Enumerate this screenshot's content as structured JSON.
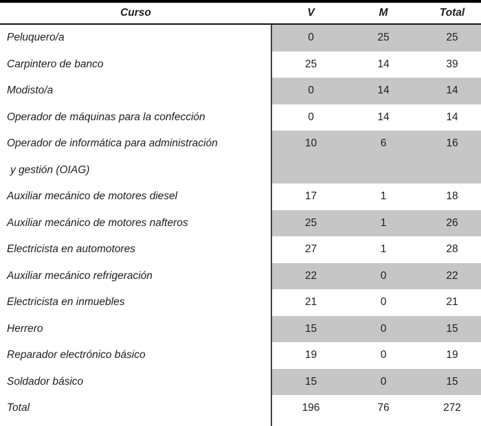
{
  "table": {
    "columns": [
      "Curso",
      "V",
      "M",
      "Total"
    ],
    "rows": [
      {
        "curso": "Peluquero/a",
        "v": "0",
        "m": "25",
        "total": "25",
        "shaded": true
      },
      {
        "curso": "Carpintero de banco",
        "v": "25",
        "m": "14",
        "total": "39",
        "shaded": false
      },
      {
        "curso": "Modisto/a",
        "v": "0",
        "m": "14",
        "total": "14",
        "shaded": true
      },
      {
        "curso": "Operador de máquinas para la confección",
        "v": "0",
        "m": "14",
        "total": "14",
        "shaded": false
      },
      {
        "curso_line1": "Operador de informática para administración",
        "curso_line2": "y gestión (OIAG)",
        "v": "10",
        "m": "6",
        "total": "16",
        "shaded": true
      },
      {
        "curso": "Auxiliar mecánico de motores diesel",
        "v": "17",
        "m": "1",
        "total": "18",
        "shaded": false
      },
      {
        "curso": "Auxiliar mecánico de motores nafteros",
        "v": "25",
        "m": "1",
        "total": "26",
        "shaded": true
      },
      {
        "curso": "Electricista en automotores",
        "v": "27",
        "m": "1",
        "total": "28",
        "shaded": false
      },
      {
        "curso": "Auxiliar mecánico refrigeración",
        "v": "22",
        "m": "0",
        "total": "22",
        "shaded": true
      },
      {
        "curso": "Electricista en inmuebles",
        "v": "21",
        "m": "0",
        "total": "21",
        "shaded": false
      },
      {
        "curso": "Herrero",
        "v": "15",
        "m": "0",
        "total": "15",
        "shaded": true
      },
      {
        "curso": "Reparador electrónico básico",
        "v": "19",
        "m": "0",
        "total": "19",
        "shaded": false
      },
      {
        "curso": "Soldador básico",
        "v": "15",
        "m": "0",
        "total": "15",
        "shaded": true
      },
      {
        "curso": "Total",
        "v": "196",
        "m": "76",
        "total": "272",
        "shaded": false
      }
    ],
    "colors": {
      "shaded_row": "#c6c6c6",
      "top_border": "#000000",
      "divider": "#3d3d3d",
      "text": "#1d1d1d"
    }
  },
  "chart_data": {
    "type": "table",
    "title": "",
    "columns": [
      "Curso",
      "V",
      "M",
      "Total"
    ],
    "categories": [
      "Peluquero/a",
      "Carpintero de banco",
      "Modisto/a",
      "Operador de máquinas para la confección",
      "Operador de informática para administración y gestión (OIAG)",
      "Auxiliar mecánico de motores diesel",
      "Auxiliar mecánico de motores nafteros",
      "Electricista en automotores",
      "Auxiliar mecánico refrigeración",
      "Electricista en inmuebles",
      "Herrero",
      "Reparador electrónico básico",
      "Soldador básico"
    ],
    "series": [
      {
        "name": "V",
        "values": [
          0,
          25,
          0,
          0,
          10,
          17,
          25,
          27,
          22,
          21,
          15,
          19,
          15
        ],
        "total": 196
      },
      {
        "name": "M",
        "values": [
          25,
          14,
          14,
          14,
          6,
          1,
          1,
          1,
          0,
          0,
          0,
          0,
          0
        ],
        "total": 76
      },
      {
        "name": "Total",
        "values": [
          25,
          39,
          14,
          14,
          16,
          18,
          26,
          28,
          22,
          21,
          15,
          19,
          15
        ],
        "total": 272
      }
    ]
  }
}
